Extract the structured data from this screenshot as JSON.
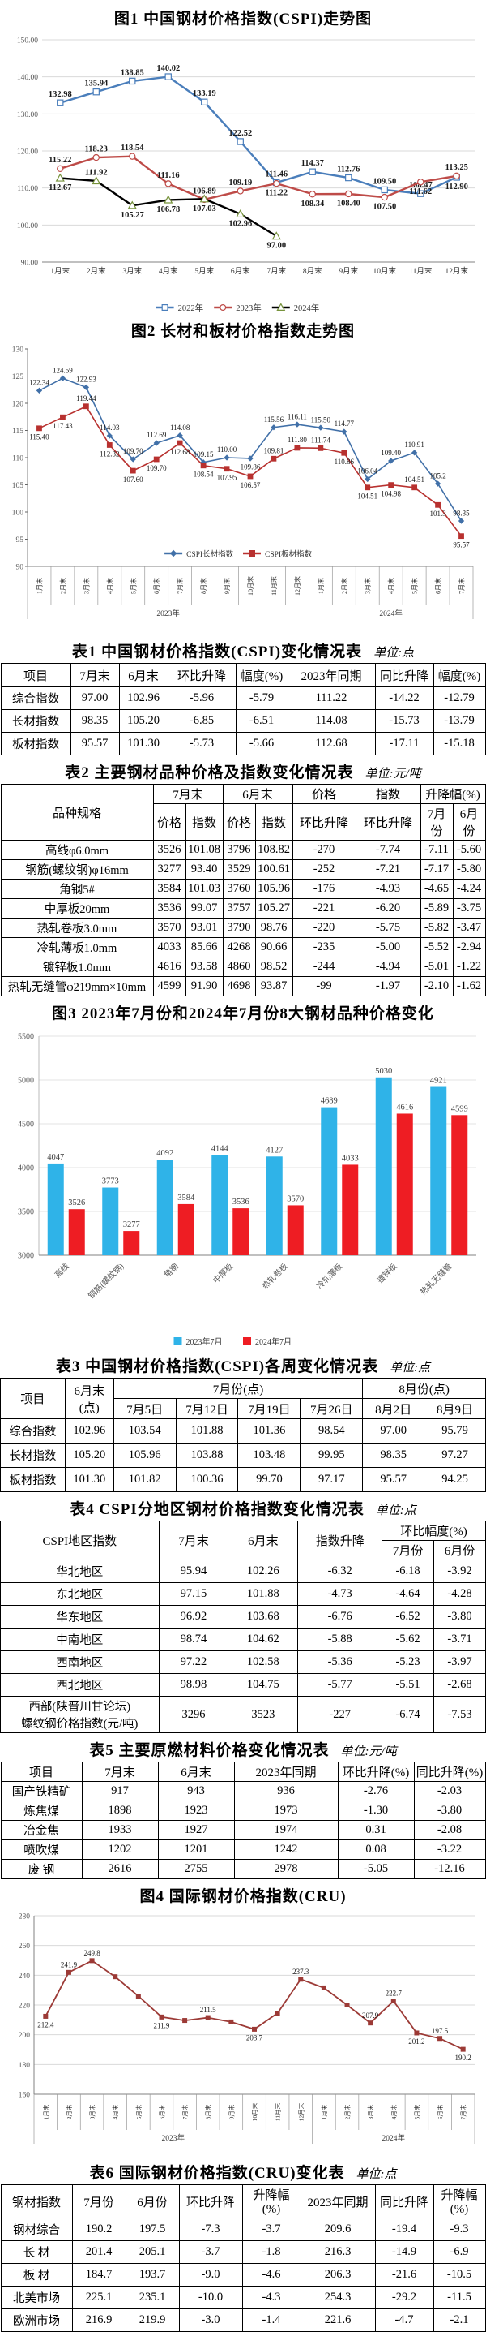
{
  "page": {
    "background": "#ffffff"
  },
  "figures": {
    "fig1": {
      "title": "图1 中国钢材价格指数(CSPI)走势图"
    },
    "fig2": {
      "title": "图2 长材和板材价格指数走势图"
    },
    "fig3": {
      "title": "图3 2023年7月份和2024年7月份8大钢材品种价格变化"
    },
    "fig4": {
      "title": "图4 国际钢材价格指数(CRU)"
    }
  },
  "chart_data": [
    {
      "type": "line",
      "title": "图1 中国钢材价格指数(CSPI)走势图",
      "categories": [
        "1月末",
        "2月末",
        "3月末",
        "4月末",
        "5月末",
        "6月末",
        "7月末",
        "8月末",
        "9月末",
        "10月末",
        "11月末",
        "12月末"
      ],
      "ylim": [
        90,
        150
      ],
      "yticks": [
        {
          "v": 150,
          "t": "150.00"
        },
        {
          "v": 140,
          "t": "140.00"
        },
        {
          "v": 130,
          "t": "130.00"
        },
        {
          "v": 120,
          "t": "120.00"
        },
        {
          "v": 110,
          "t": "110.00"
        },
        {
          "v": 100,
          "t": "100.00"
        },
        {
          "v": 90,
          "t": "90.00"
        }
      ],
      "grid": true,
      "legend_position": "bottom",
      "series": [
        {
          "name": "2022年",
          "color": "#4a7ebb",
          "marker": "square",
          "values": [
            132.98,
            135.94,
            138.85,
            140.02,
            133.19,
            122.52,
            111.46,
            114.37,
            112.76,
            109.5,
            108.47,
            112.9
          ],
          "labels": [
            "132.98",
            "135.94",
            "138.85",
            "140.02",
            "133.19",
            "122.52",
            "111.46",
            "114.37",
            "112.76",
            "109.50",
            "108.47",
            "112.90"
          ]
        },
        {
          "name": "2023年",
          "color": "#be4b48",
          "marker": "circle",
          "values": [
            115.22,
            118.23,
            118.54,
            111.16,
            106.89,
            109.19,
            111.22,
            108.34,
            108.4,
            107.5,
            111.62,
            113.25
          ],
          "labels": [
            "115.22",
            "118.23",
            "118.54",
            "111.16",
            "106.89",
            "109.19",
            "111.22",
            "108.34",
            "108.40",
            "107.50",
            "111.62",
            "113.25"
          ]
        },
        {
          "name": "2024年",
          "color": "#000000",
          "marker": "triangle",
          "marker_color": "#77933c",
          "values": [
            112.67,
            111.92,
            105.27,
            106.78,
            107.03,
            102.96,
            97.0
          ],
          "labels": [
            "112.67",
            "111.92",
            "105.27",
            "106.78",
            "107.03",
            "102.96",
            "97.00"
          ]
        }
      ]
    },
    {
      "type": "line",
      "title": "图2 长材和板材价格指数走势图",
      "categories": [
        "1月末",
        "2月末",
        "3月末",
        "4月末",
        "5月末",
        "6月末",
        "7月末",
        "8月末",
        "9月末",
        "10月末",
        "11月末",
        "12月末",
        "1月末",
        "2月末",
        "3月末",
        "4月末",
        "5月末",
        "6月末",
        "7月末"
      ],
      "groups": [
        {
          "label": "2023年",
          "span": 12
        },
        {
          "label": "2024年",
          "span": 7
        }
      ],
      "ylim": [
        90,
        130
      ],
      "yticks": [
        {
          "v": 130,
          "t": "130"
        },
        {
          "v": 125,
          "t": "125"
        },
        {
          "v": 120,
          "t": "120"
        },
        {
          "v": 115,
          "t": "115"
        },
        {
          "v": 110,
          "t": "110"
        },
        {
          "v": 105,
          "t": "105"
        },
        {
          "v": 100,
          "t": "100"
        },
        {
          "v": 95,
          "t": "95"
        },
        {
          "v": 90,
          "t": "90"
        }
      ],
      "grid": false,
      "legend_position": "inside-bottom",
      "series": [
        {
          "name": "CSPI长材指数",
          "color": "#4170a8",
          "marker": "diamond",
          "values": [
            122.34,
            124.59,
            122.93,
            114.03,
            109.7,
            112.69,
            114.08,
            109.15,
            110.0,
            109.86,
            115.56,
            116.11,
            115.5,
            114.77,
            106.04,
            109.4,
            110.91,
            105.2,
            98.35
          ],
          "labels": [
            "122.34",
            "124.59",
            "122.93",
            "114.03",
            "109.70",
            "112.69",
            "114.08",
            "109.15",
            "110.00",
            "109.86",
            "115.56",
            "116.11",
            "115.50",
            "114.77",
            "106.04",
            "109.40",
            "110.91",
            "105.2",
            "98.35"
          ]
        },
        {
          "name": "CSPI板材指数",
          "color": "#b8312f",
          "marker": "square",
          "values": [
            115.4,
            117.43,
            119.44,
            112.32,
            107.6,
            109.7,
            112.68,
            108.54,
            107.95,
            106.57,
            109.81,
            111.8,
            111.74,
            110.86,
            104.51,
            104.98,
            104.51,
            101.3,
            95.57
          ],
          "labels": [
            "115.40",
            "117.43",
            "119.44",
            "112.32",
            "107.60",
            "109.70",
            "112.68",
            "108.54",
            "107.95",
            "106.57",
            "109.81",
            "111.80",
            "111.74",
            "110.86",
            "104.51",
            "104.98",
            "104.51",
            "101.3",
            "95.57"
          ]
        }
      ]
    },
    {
      "type": "bar",
      "title": "图3 2023年7月份和2024年7月份8大钢材品种价格变化",
      "categories": [
        "高线",
        "钢筋(螺纹钢)",
        "角钢",
        "中厚板",
        "热轧卷板",
        "冷轧薄板",
        "镀锌板",
        "热轧无缝管"
      ],
      "ylim": [
        3000,
        5500
      ],
      "yticks": [
        {
          "v": 5500,
          "t": "5500"
        },
        {
          "v": 5000,
          "t": "5000"
        },
        {
          "v": 4500,
          "t": "4500"
        },
        {
          "v": 4000,
          "t": "4000"
        },
        {
          "v": 3500,
          "t": "3500"
        },
        {
          "v": 3000,
          "t": "3000"
        }
      ],
      "grid": true,
      "legend_position": "bottom",
      "series": [
        {
          "name": "2023年7月",
          "color": "#2fb3e8",
          "values": [
            4047,
            3773,
            4092,
            4144,
            4127,
            4689,
            5030,
            4921
          ],
          "labels": [
            "4047",
            "3773",
            "4092",
            "4144",
            "4127",
            "4689",
            "5030",
            "4921"
          ]
        },
        {
          "name": "2024年7月",
          "color": "#ee1d23",
          "values": [
            3526,
            3277,
            3584,
            3536,
            3570,
            4033,
            4616,
            4599
          ],
          "labels": [
            "3526",
            "3277",
            "3584",
            "3536",
            "3570",
            "4033",
            "4616",
            "4599"
          ]
        }
      ]
    },
    {
      "type": "line",
      "title": "图4 国际钢材价格指数(CRU)",
      "categories": [
        "1月末",
        "2月末",
        "3月末",
        "4月末",
        "5月末",
        "6月末",
        "7月末",
        "8月末",
        "9月末",
        "10月末",
        "11月末",
        "12月末",
        "1月末",
        "2月末",
        "3月末",
        "4月末",
        "5月末",
        "6月末",
        "7月末"
      ],
      "groups": [
        {
          "label": "2023年",
          "span": 12
        },
        {
          "label": "2024年",
          "span": 7
        }
      ],
      "ylim": [
        160,
        280
      ],
      "yticks": [
        {
          "v": 280,
          "t": "280"
        },
        {
          "v": 260,
          "t": "260"
        },
        {
          "v": 240,
          "t": "240"
        },
        {
          "v": 220,
          "t": "220"
        },
        {
          "v": 200,
          "t": "200"
        },
        {
          "v": 180,
          "t": "180"
        },
        {
          "v": 160,
          "t": "160"
        }
      ],
      "grid": true,
      "legend_position": "none",
      "series": [
        {
          "name": "国际钢材价格指数(CRU)",
          "color": "#9c3a36",
          "marker": "square",
          "values": [
            212.4,
            241.9,
            249.8,
            239.0,
            226.0,
            211.9,
            209.6,
            211.5,
            208.6,
            203.7,
            214.5,
            237.3,
            231.5,
            220.0,
            207.9,
            222.7,
            201.2,
            197.5,
            190.2
          ],
          "labels": [
            "212.4",
            "241.9",
            "249.8",
            null,
            null,
            "211.9",
            null,
            "211.5",
            null,
            "203.7",
            null,
            "237.3",
            null,
            null,
            "207.9",
            "222.7",
            "201.2",
            "197.5",
            "190.2"
          ]
        }
      ]
    }
  ],
  "tables": {
    "t1": {
      "title": "表1 中国钢材价格指数(CSPI)变化情况表",
      "unit": "单位:点",
      "header": [
        [
          {
            "t": "项目"
          },
          {
            "t": "7月末"
          },
          {
            "t": "6月末"
          },
          {
            "t": "环比升降"
          },
          {
            "t": "幅度(%)"
          },
          {
            "t": "2023年同期"
          },
          {
            "t": "同比升降"
          },
          {
            "t": "幅度(%)"
          }
        ]
      ],
      "rows": [
        [
          "综合指数",
          "97.00",
          "102.96",
          "-5.96",
          "-5.79",
          "111.22",
          "-14.22",
          "-12.79"
        ],
        [
          "长材指数",
          "98.35",
          "105.20",
          "-6.85",
          "-6.51",
          "114.08",
          "-15.73",
          "-13.79"
        ],
        [
          "板材指数",
          "95.57",
          "101.30",
          "-5.73",
          "-5.66",
          "112.68",
          "-17.11",
          "-15.18"
        ]
      ]
    },
    "t2": {
      "title": "表2 主要钢材品种价格及指数变化情况表",
      "unit": "单位:元/吨",
      "header": [
        [
          {
            "t": "品种规格",
            "rs": 2
          },
          {
            "t": "7月末",
            "cs": 2
          },
          {
            "t": "6月末",
            "cs": 2
          },
          {
            "t": "价格"
          },
          {
            "t": "指数"
          },
          {
            "t": "升降幅(%)",
            "cs": 2
          }
        ],
        [
          {
            "t": "价格"
          },
          {
            "t": "指数"
          },
          {
            "t": "价格"
          },
          {
            "t": "指数"
          },
          {
            "t": "环比升降"
          },
          {
            "t": "环比升降"
          },
          {
            "t": "7月份"
          },
          {
            "t": "6月份"
          }
        ]
      ],
      "rows": [
        [
          "高线φ6.0mm",
          "3526",
          "101.08",
          "3796",
          "108.82",
          "-270",
          "-7.74",
          "-7.11",
          "-5.60"
        ],
        [
          "钢筋(螺纹钢)φ16mm",
          "3277",
          "93.40",
          "3529",
          "100.61",
          "-252",
          "-7.21",
          "-7.17",
          "-5.80"
        ],
        [
          "角钢5#",
          "3584",
          "101.03",
          "3760",
          "105.96",
          "-176",
          "-4.93",
          "-4.65",
          "-4.24"
        ],
        [
          "中厚板20mm",
          "3536",
          "99.07",
          "3757",
          "105.27",
          "-221",
          "-6.20",
          "-5.89",
          "-3.75"
        ],
        [
          "热轧卷板3.0mm",
          "3570",
          "93.01",
          "3790",
          "98.76",
          "-220",
          "-5.75",
          "-5.82",
          "-3.47"
        ],
        [
          "冷轧薄板1.0mm",
          "4033",
          "85.66",
          "4268",
          "90.66",
          "-235",
          "-5.00",
          "-5.52",
          "-2.94"
        ],
        [
          "镀锌板1.0mm",
          "4616",
          "93.58",
          "4860",
          "98.52",
          "-244",
          "-4.94",
          "-5.01",
          "-1.22"
        ],
        [
          "热轧无缝管φ219mm×10mm",
          "4599",
          "91.90",
          "4698",
          "93.87",
          "-99",
          "-1.97",
          "-2.10",
          "-1.62"
        ]
      ]
    },
    "t3": {
      "title": "表3 中国钢材价格指数(CSPI)各周变化情况表",
      "unit": "单位:点",
      "header": [
        [
          {
            "t": "项目",
            "rs": 2
          },
          {
            "t": "6月末(点)",
            "rs": 2
          },
          {
            "t": "7月份(点)",
            "cs": 4
          },
          {
            "t": "8月份(点)",
            "cs": 2
          }
        ],
        [
          {
            "t": "7月5日"
          },
          {
            "t": "7月12日"
          },
          {
            "t": "7月19日"
          },
          {
            "t": "7月26日"
          },
          {
            "t": "8月2日"
          },
          {
            "t": "8月9日"
          }
        ]
      ],
      "rows": [
        [
          "综合指数",
          "102.96",
          "103.54",
          "101.88",
          "101.36",
          "98.54",
          "97.00",
          "95.79"
        ],
        [
          "长材指数",
          "105.20",
          "105.96",
          "103.88",
          "103.48",
          "99.95",
          "98.35",
          "97.27"
        ],
        [
          "板材指数",
          "101.30",
          "101.82",
          "100.36",
          "99.70",
          "97.17",
          "95.57",
          "94.25"
        ]
      ]
    },
    "t4": {
      "title": "表4 CSPI分地区钢材价格指数变化情况表",
      "unit": "单位:点",
      "header": [
        [
          {
            "t": "CSPI地区指数",
            "rs": 2
          },
          {
            "t": "7月末",
            "rs": 2
          },
          {
            "t": "6月末",
            "rs": 2
          },
          {
            "t": "指数升降",
            "rs": 2
          },
          {
            "t": "环比幅度(%)",
            "cs": 2
          }
        ],
        [
          {
            "t": "7月份"
          },
          {
            "t": "6月份"
          }
        ]
      ],
      "rows": [
        [
          "华北地区",
          "95.94",
          "102.26",
          "-6.32",
          "-6.18",
          "-3.92"
        ],
        [
          "东北地区",
          "97.15",
          "101.88",
          "-4.73",
          "-4.64",
          "-4.28"
        ],
        [
          "华东地区",
          "96.92",
          "103.68",
          "-6.76",
          "-6.52",
          "-3.80"
        ],
        [
          "中南地区",
          "98.74",
          "104.62",
          "-5.88",
          "-5.62",
          "-3.71"
        ],
        [
          "西南地区",
          "97.22",
          "102.58",
          "-5.36",
          "-5.23",
          "-3.97"
        ],
        [
          "西北地区",
          "98.98",
          "104.75",
          "-5.77",
          "-5.51",
          "-2.68"
        ],
        [
          "西部(陕晋川甘论坛)\n螺纹钢价格指数(元/吨)",
          "3296",
          "3523",
          "-227",
          "-6.74",
          "-7.53"
        ]
      ]
    },
    "t5": {
      "title": "表5 主要原燃材料价格变化情况表",
      "unit": "单位:元/吨",
      "header": [
        [
          {
            "t": "项目"
          },
          {
            "t": "7月末"
          },
          {
            "t": "6月末"
          },
          {
            "t": "2023年同期"
          },
          {
            "t": "环比升降(%)"
          },
          {
            "t": "同比升降(%)"
          }
        ]
      ],
      "rows": [
        [
          "国产铁精矿",
          "917",
          "943",
          "936",
          "-2.76",
          "-2.03"
        ],
        [
          "炼焦煤",
          "1898",
          "1923",
          "1973",
          "-1.30",
          "-3.80"
        ],
        [
          "冶金焦",
          "1933",
          "1927",
          "1974",
          "0.31",
          "-2.08"
        ],
        [
          "喷吹煤",
          "1202",
          "1201",
          "1242",
          "0.08",
          "-3.22"
        ],
        [
          "废 钢",
          "2616",
          "2755",
          "2978",
          "-5.05",
          "-12.16"
        ]
      ]
    },
    "t6": {
      "title": "表6 国际钢材价格指数(CRU)变化表",
      "unit": "单位:点",
      "header": [
        [
          {
            "t": "钢材指数"
          },
          {
            "t": "7月份"
          },
          {
            "t": "6月份"
          },
          {
            "t": "环比升降"
          },
          {
            "t": "升降幅(%)"
          },
          {
            "t": "2023年同期"
          },
          {
            "t": "同比升降"
          },
          {
            "t": "升降幅(%)"
          }
        ]
      ],
      "rows": [
        [
          "钢材综合",
          "190.2",
          "197.5",
          "-7.3",
          "-3.7",
          "209.6",
          "-19.4",
          "-9.3"
        ],
        [
          "长 材",
          "201.4",
          "205.1",
          "-3.7",
          "-1.8",
          "216.3",
          "-14.9",
          "-6.9"
        ],
        [
          "板 材",
          "184.7",
          "193.7",
          "-9.0",
          "-4.6",
          "206.3",
          "-21.6",
          "-10.5"
        ],
        [
          "北美市场",
          "225.1",
          "235.1",
          "-10.0",
          "-4.3",
          "254.3",
          "-29.2",
          "-11.5"
        ],
        [
          "欧洲市场",
          "216.9",
          "219.9",
          "-3.0",
          "-1.4",
          "221.6",
          "-4.7",
          "-2.1"
        ]
      ]
    }
  }
}
